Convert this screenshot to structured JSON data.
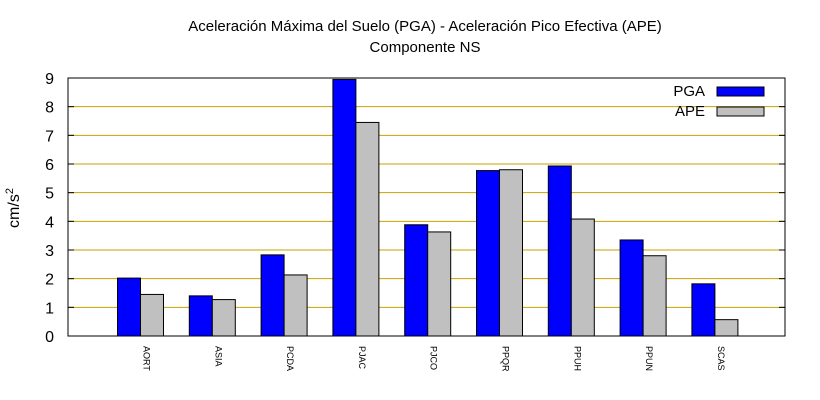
{
  "chart_data": {
    "type": "bar",
    "title": "Aceleración Máxima del Suelo (PGA) -  Aceleración Pico Efectiva (APE)",
    "subtitle": "Componente NS",
    "ylabel": "cm/s",
    "ylabel_sup": "2",
    "xlabel": "",
    "ylim": [
      0,
      9
    ],
    "yticks": [
      "0",
      "1",
      "2",
      "3",
      "4",
      "5",
      "6",
      "7",
      "8",
      "9"
    ],
    "grid": true,
    "legend_position": "top-right",
    "categories": [
      "AORT",
      "ASIA",
      "PCDA",
      "PJAC",
      "PJCO",
      "PPQR",
      "PPUH",
      "PPUN",
      "SCAS"
    ],
    "series": [
      {
        "name": "PGA",
        "color": "#0000ff",
        "values": [
          2.02,
          1.4,
          2.83,
          8.95,
          3.88,
          5.77,
          5.93,
          3.35,
          1.82
        ]
      },
      {
        "name": "APE",
        "color": "#c0c0c0",
        "values": [
          1.45,
          1.27,
          2.13,
          7.45,
          3.63,
          5.8,
          4.08,
          2.8,
          0.57
        ]
      }
    ],
    "gridline_color": "#c8a000"
  }
}
